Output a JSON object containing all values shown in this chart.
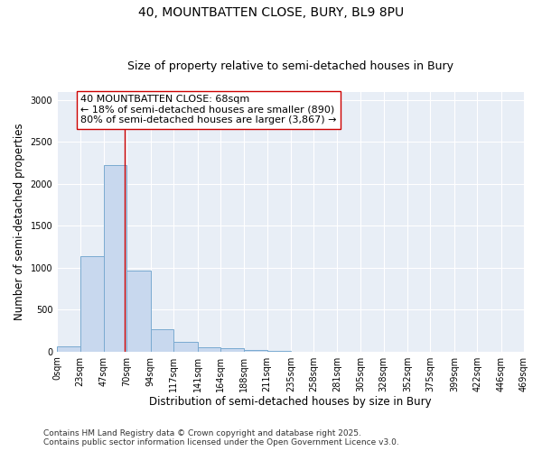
{
  "title_line1": "40, MOUNTBATTEN CLOSE, BURY, BL9 8PU",
  "title_line2": "Size of property relative to semi-detached houses in Bury",
  "xlabel": "Distribution of semi-detached houses by size in Bury",
  "ylabel": "Number of semi-detached properties",
  "bin_labels": [
    "0sqm",
    "23sqm",
    "47sqm",
    "70sqm",
    "94sqm",
    "117sqm",
    "141sqm",
    "164sqm",
    "188sqm",
    "211sqm",
    "235sqm",
    "258sqm",
    "281sqm",
    "305sqm",
    "328sqm",
    "352sqm",
    "375sqm",
    "399sqm",
    "422sqm",
    "446sqm",
    "469sqm"
  ],
  "bar_values": [
    65,
    1140,
    2220,
    970,
    270,
    110,
    50,
    40,
    15,
    5,
    0,
    0,
    0,
    0,
    0,
    0,
    0,
    0,
    0,
    0
  ],
  "bin_edges": [
    0,
    23,
    47,
    70,
    94,
    117,
    141,
    164,
    188,
    211,
    235,
    258,
    281,
    305,
    328,
    352,
    375,
    399,
    422,
    446,
    469
  ],
  "bar_color": "#c8d8ee",
  "bar_edge_color": "#7aaad0",
  "property_line_x": 68,
  "property_line_color": "#cc0000",
  "annotation_line1": "40 MOUNTBATTEN CLOSE: 68sqm",
  "annotation_line2": "← 18% of semi-detached houses are smaller (890)",
  "annotation_line3": "80% of semi-detached houses are larger (3,867) →",
  "annotation_box_color": "#ffffff",
  "annotation_box_edge_color": "#cc0000",
  "ylim": [
    0,
    3100
  ],
  "yticks": [
    0,
    500,
    1000,
    1500,
    2000,
    2500,
    3000
  ],
  "plot_bg_color": "#e8eef6",
  "fig_bg_color": "#ffffff",
  "grid_color": "#ffffff",
  "footer_line1": "Contains HM Land Registry data © Crown copyright and database right 2025.",
  "footer_line2": "Contains public sector information licensed under the Open Government Licence v3.0.",
  "title_fontsize": 10,
  "subtitle_fontsize": 9,
  "tick_fontsize": 7,
  "label_fontsize": 8.5,
  "annotation_fontsize": 8,
  "footer_fontsize": 6.5
}
